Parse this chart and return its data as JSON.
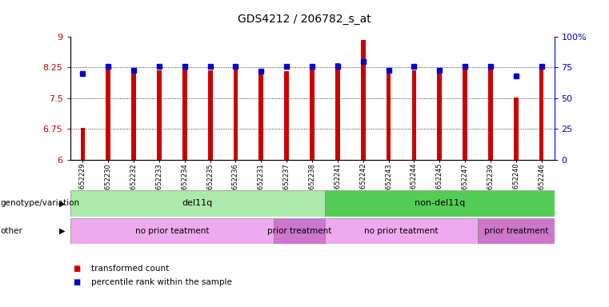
{
  "title": "GDS4212 / 206782_s_at",
  "samples": [
    "GSM652229",
    "GSM652230",
    "GSM652232",
    "GSM652233",
    "GSM652234",
    "GSM652235",
    "GSM652236",
    "GSM652231",
    "GSM652237",
    "GSM652238",
    "GSM652241",
    "GSM652242",
    "GSM652243",
    "GSM652244",
    "GSM652245",
    "GSM652247",
    "GSM652239",
    "GSM652240",
    "GSM652246"
  ],
  "bar_values": [
    6.78,
    8.32,
    8.17,
    8.19,
    8.25,
    8.19,
    8.2,
    8.17,
    8.17,
    8.3,
    8.35,
    8.93,
    8.17,
    8.18,
    8.17,
    8.3,
    8.3,
    7.52,
    8.3
  ],
  "dot_values": [
    70,
    76,
    73,
    76,
    76,
    76,
    76,
    72,
    76,
    76,
    76,
    80,
    73,
    76,
    73,
    76,
    76,
    68,
    76
  ],
  "ylim_left": [
    6.0,
    9.0
  ],
  "ylim_right": [
    0,
    100
  ],
  "yticks_left": [
    6.0,
    6.75,
    7.5,
    8.25,
    9.0
  ],
  "ytick_labels_left": [
    "6",
    "6.75",
    "7.5",
    "8.25",
    "9"
  ],
  "yticks_right": [
    0,
    25,
    50,
    75,
    100
  ],
  "ytick_labels_right": [
    "0",
    "25",
    "50",
    "75",
    "100%"
  ],
  "hlines": [
    6.75,
    7.5,
    8.25
  ],
  "bar_color": "#cc0000",
  "dot_color": "#0000cc",
  "axis_color_left": "#cc0000",
  "axis_color_right": "#0000cc",
  "groups": [
    {
      "label": "del11q",
      "start": 0,
      "end": 10,
      "color": "#aaeaaa"
    },
    {
      "label": "non-del11q",
      "start": 10,
      "end": 19,
      "color": "#55cc55"
    }
  ],
  "treatments": [
    {
      "label": "no prior teatment",
      "start": 0,
      "end": 8,
      "color": "#eeaaee"
    },
    {
      "label": "prior treatment",
      "start": 8,
      "end": 10,
      "color": "#cc77cc"
    },
    {
      "label": "no prior teatment",
      "start": 10,
      "end": 16,
      "color": "#eeaaee"
    },
    {
      "label": "prior treatment",
      "start": 16,
      "end": 19,
      "color": "#cc77cc"
    }
  ],
  "row_labels": [
    "genotype/variation",
    "other"
  ],
  "legend_items": [
    {
      "label": "transformed count",
      "color": "#cc0000"
    },
    {
      "label": "percentile rank within the sample",
      "color": "#0000cc"
    }
  ],
  "bar_width": 0.18
}
